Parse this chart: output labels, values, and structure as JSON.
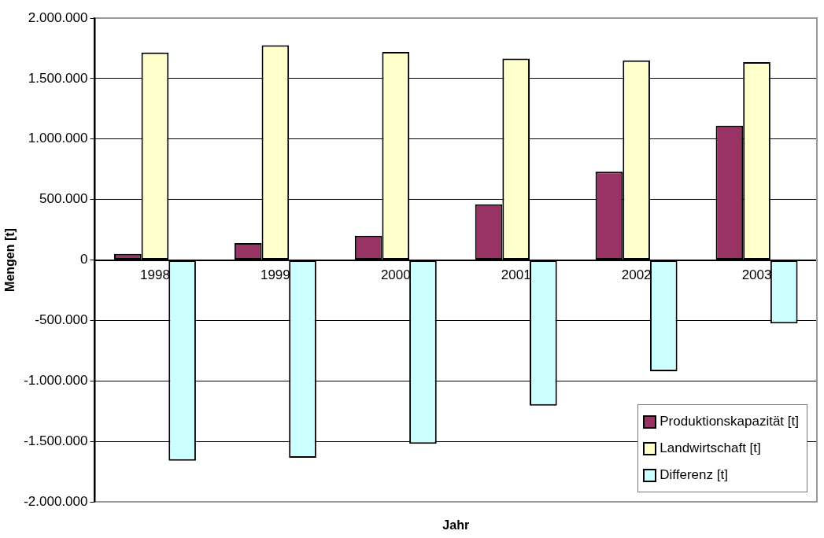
{
  "chart_data": {
    "type": "bar",
    "xlabel": "Jahr",
    "ylabel": "Mengen [t]",
    "categories": [
      "1998",
      "1999",
      "2000",
      "2001",
      "2002",
      "2003"
    ],
    "series": [
      {
        "name": "Produktionskapazität [t]",
        "color": "#993366",
        "values": [
          50000,
          140000,
          200000,
          460000,
          730000,
          1110000
        ]
      },
      {
        "name": "Landwirtschaft [t]",
        "color": "#ffffcc",
        "values": [
          1715000,
          1775000,
          1720000,
          1665000,
          1650000,
          1635000
        ]
      },
      {
        "name": "Differenz [t]",
        "color": "#ccffff",
        "values": [
          -1660000,
          -1635000,
          -1520000,
          -1205000,
          -920000,
          -525000
        ]
      }
    ],
    "ylim": [
      -2000000,
      2000000
    ],
    "yticks": [
      {
        "value": -2000000,
        "label": "-2.000.000"
      },
      {
        "value": -1500000,
        "label": "-1.500.000"
      },
      {
        "value": -1000000,
        "label": "-1.000.000"
      },
      {
        "value": -500000,
        "label": "-500.000"
      },
      {
        "value": 0,
        "label": "0"
      },
      {
        "value": 500000,
        "label": "500.000"
      },
      {
        "value": 1000000,
        "label": "1.000.000"
      },
      {
        "value": 1500000,
        "label": "1.500.000"
      },
      {
        "value": 2000000,
        "label": "2.000.000"
      }
    ],
    "grid": "y",
    "legend": "bottom right"
  }
}
